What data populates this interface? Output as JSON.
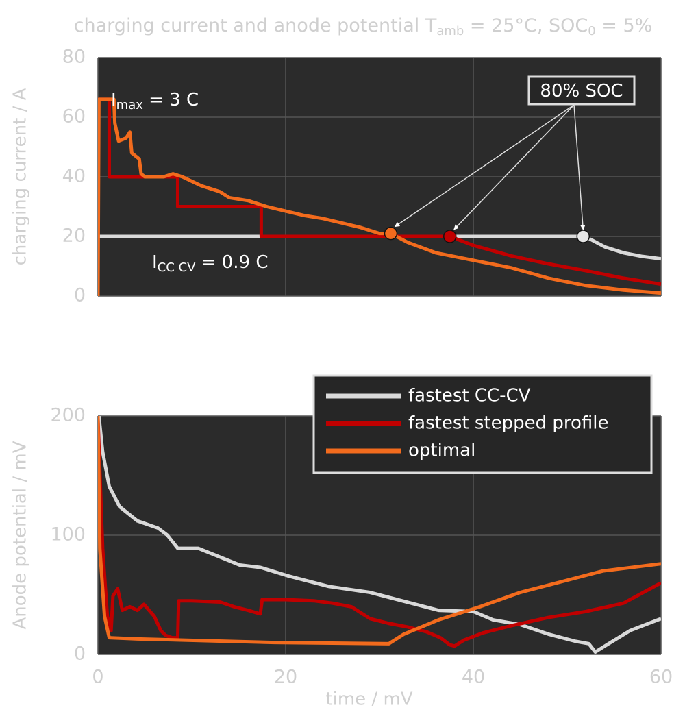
{
  "chart_data": [
    {
      "type": "line",
      "title": [
        "charging current and anode potential T",
        "amb",
        " = 25°C, SOC",
        "0",
        " = 5%"
      ],
      "ylabel": "charging current / A",
      "xlim": [
        0,
        60
      ],
      "xticks": [
        0,
        20,
        40,
        60
      ],
      "show_xtick_labels": false,
      "ylim": [
        0,
        80
      ],
      "yticks": [
        0,
        20,
        40,
        60,
        80
      ],
      "grid": true,
      "series": [
        {
          "color": "#d9d9d9",
          "x": [
            0,
            51.7,
            52.5,
            54,
            56,
            58,
            60
          ],
          "y": [
            20,
            20,
            19,
            16.5,
            14.5,
            13.3,
            12.5
          ]
        },
        {
          "color": "#c00000",
          "x": [
            0,
            1.2,
            1.2,
            8.5,
            8.5,
            17.4,
            17.4,
            37.5,
            40,
            44,
            48,
            52,
            56,
            60
          ],
          "y": [
            66,
            66,
            40,
            40,
            30,
            30,
            20,
            20,
            17,
            13.5,
            10.8,
            8.5,
            6,
            4
          ]
        },
        {
          "color": "#f26b1d",
          "x": [
            0,
            0.1,
            1.7,
            1.8,
            2.2,
            3,
            3.4,
            3.6,
            4.4,
            4.6,
            5,
            7,
            8,
            9,
            10,
            11,
            12,
            13,
            14,
            16,
            18,
            20,
            22,
            24,
            26,
            28,
            30,
            31.2,
            33,
            36,
            40,
            44,
            48,
            52,
            56,
            60
          ],
          "y": [
            0,
            66,
            66,
            58,
            52,
            53,
            55,
            48,
            46,
            41,
            40,
            40,
            41,
            40,
            38.5,
            37,
            36,
            35,
            33,
            32,
            30,
            28.5,
            27,
            26,
            24.5,
            23,
            21,
            21,
            18,
            14.5,
            12,
            9.5,
            6,
            3.5,
            2,
            1
          ]
        }
      ],
      "markers": {
        "x": [
          31.2,
          37.5,
          51.7
        ],
        "y": [
          21,
          20,
          20
        ],
        "colors": [
          "#f26b1d",
          "#c00000",
          "#e6e6e6"
        ]
      },
      "annotations": [
        {
          "text": [
            "I",
            "max",
            " = 3 C"
          ]
        },
        {
          "text": [
            "I",
            "CC CV",
            " = 0.9 C"
          ]
        },
        {
          "text": [
            "80% SOC"
          ]
        }
      ]
    },
    {
      "type": "line",
      "xlabel": "time / mV",
      "ylabel": "Anode potential / mV",
      "xlim": [
        0,
        60
      ],
      "xticks": [
        0,
        20,
        40,
        60
      ],
      "show_xtick_labels": true,
      "ylim": [
        0,
        200
      ],
      "yticks": [
        0,
        100,
        200
      ],
      "grid": true,
      "legend": "upper right",
      "series": [
        {
          "name": "fastest CC-CV",
          "color": "#d9d9d9",
          "x": [
            0.1,
            0.5,
            1.2,
            2.3,
            4.2,
            6.4,
            7.4,
            8.5,
            10.7,
            12.9,
            15.1,
            17.3,
            20.2,
            24.6,
            29,
            31.9,
            36.3,
            40,
            42.1,
            45,
            48,
            50.9,
            52.3,
            53,
            53.8,
            56.7,
            60
          ],
          "y": [
            200,
            170,
            141,
            124,
            112,
            106,
            100,
            89,
            89,
            82,
            75,
            73,
            66,
            57,
            52,
            46,
            37,
            36,
            29,
            25,
            17,
            11,
            9,
            2,
            6,
            20,
            30
          ]
        },
        {
          "name": "fastest stepped profile",
          "color": "#c00000",
          "x": [
            0,
            0.5,
            1,
            1.4,
            1.6,
            2.1,
            2.6,
            3.4,
            4.2,
            4.9,
            6,
            6.7,
            7.2,
            7.9,
            8.5,
            8.6,
            10,
            13,
            14.5,
            16,
            17.3,
            17.5,
            20,
            23,
            25,
            27,
            29,
            31,
            33,
            35,
            36.5,
            37.5,
            38,
            39,
            41,
            44,
            48,
            52,
            56,
            60
          ],
          "y": [
            198,
            89,
            32,
            20,
            49,
            55,
            37,
            40,
            37,
            42,
            32,
            20,
            16,
            14,
            14,
            45,
            45,
            44,
            40,
            37,
            34,
            46,
            46,
            45,
            43,
            40,
            30,
            26,
            23,
            19,
            14,
            8,
            7,
            12,
            18,
            24,
            31,
            36,
            43,
            60
          ]
        },
        {
          "name": "optimal",
          "color": "#f26b1d",
          "x": [
            0,
            0.2,
            0.7,
            1.2,
            4.2,
            11.5,
            18.8,
            31,
            32.6,
            36.3,
            40.7,
            45,
            49.4,
            53.8,
            60
          ],
          "y": [
            200,
            89,
            32,
            14,
            13,
            11.5,
            10,
            9,
            17,
            29,
            40,
            52,
            61,
            70,
            76
          ]
        }
      ]
    }
  ]
}
